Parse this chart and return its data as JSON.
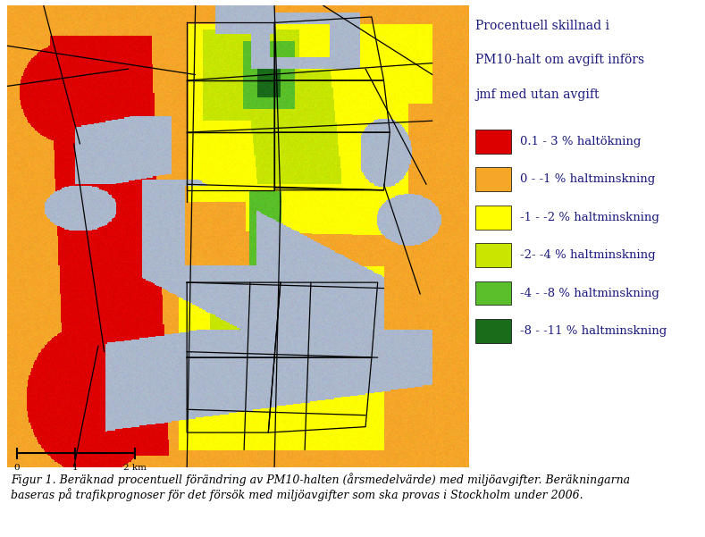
{
  "figure_width": 7.89,
  "figure_height": 6.01,
  "background_color": "#ffffff",
  "legend_title_lines": [
    "Procentuell skillnad i",
    "PM10-halt om avgift införs",
    "jmf med utan avgift"
  ],
  "legend_items": [
    {
      "color": "#dd0000",
      "label": "0.1 - 3 % haltökning"
    },
    {
      "color": "#f5a828",
      "label": "0 - -1 % haltminskning"
    },
    {
      "color": "#ffff00",
      "label": "-1 - -2 % haltminskning"
    },
    {
      "color": "#c8e600",
      "label": "-2- -4 % haltminskning"
    },
    {
      "color": "#5abf2a",
      "label": "-4 - -8 % haltminskning"
    },
    {
      "color": "#1a6b1a",
      "label": "-8 - -11 % haltminskning"
    }
  ],
  "legend_title_fontsize": 10,
  "legend_label_fontsize": 9.5,
  "caption": "Figur 1. Beräknad procentuell förändring av PM10-halten (årsmedelvärde) med miljöavgifter. Beräkningarna\nbaseras på trafikprognoser för det försök med miljöavgifter som ska provas i Stockholm under 2006.",
  "caption_fontsize": 9,
  "colors": {
    "water": [
      0.67,
      0.72,
      0.8
    ],
    "orange": [
      0.96,
      0.65,
      0.16
    ],
    "red": [
      0.87,
      0.0,
      0.0
    ],
    "yellow": [
      1.0,
      1.0,
      0.0
    ],
    "ygreen": [
      0.78,
      0.9,
      0.0
    ],
    "green": [
      0.35,
      0.75,
      0.16
    ],
    "dgreen": [
      0.1,
      0.42,
      0.1
    ]
  }
}
